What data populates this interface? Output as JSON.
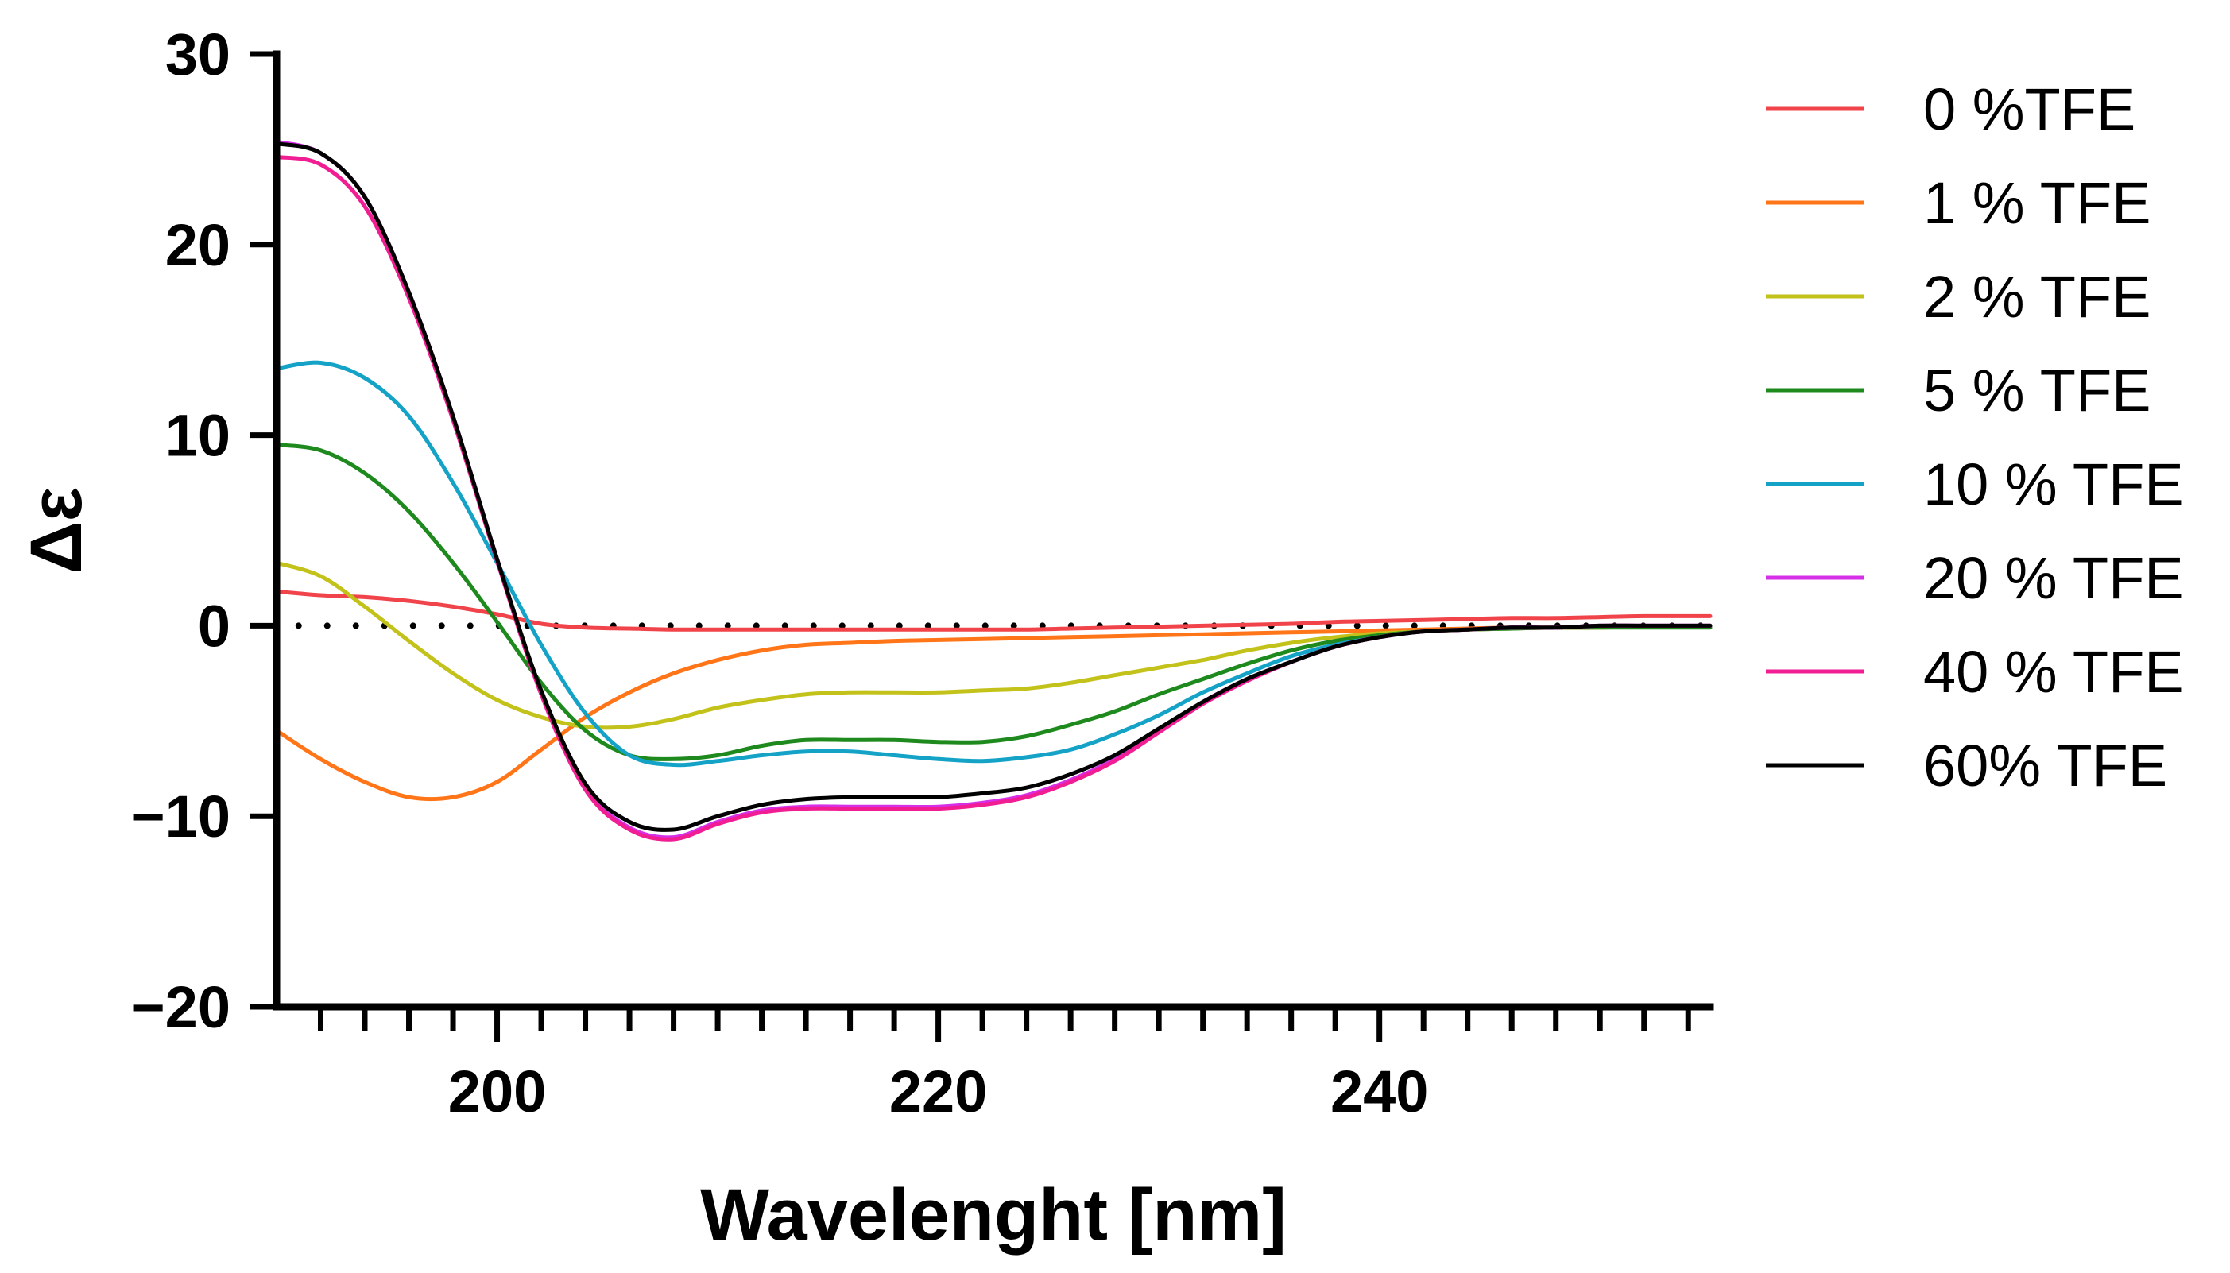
{
  "chart_data": {
    "type": "line",
    "title": "",
    "xlabel": "Wavelenght [nm]",
    "ylabel": "Δε",
    "xlim": [
      190,
      255
    ],
    "ylim": [
      -20,
      30
    ],
    "xticks": [
      200,
      220,
      240
    ],
    "xtick_labels": [
      "200",
      "220",
      "240"
    ],
    "yticks": [
      -20,
      -10,
      0,
      10,
      20,
      30
    ],
    "ytick_labels": [
      "−20",
      "−10",
      "0",
      "10",
      "20",
      "30"
    ],
    "minor_xtick_step": 2,
    "zero_reference": {
      "style": "dotted",
      "y": 0,
      "x_start": 191
    },
    "legend_position": "right",
    "x": [
      190,
      192,
      194,
      196,
      198,
      200,
      202,
      204,
      206,
      208,
      210,
      212,
      214,
      216,
      218,
      220,
      222,
      224,
      226,
      228,
      230,
      232,
      234,
      236,
      238,
      240,
      242,
      244,
      246,
      248,
      250,
      252,
      255
    ],
    "series": [
      {
        "name": "0 %TFE",
        "color": "#f0434a",
        "values": [
          1.8,
          1.6,
          1.5,
          1.3,
          1.0,
          0.6,
          0.1,
          -0.1,
          -0.15,
          -0.2,
          -0.2,
          -0.2,
          -0.2,
          -0.2,
          -0.2,
          -0.2,
          -0.2,
          -0.2,
          -0.15,
          -0.1,
          -0.05,
          0.0,
          0.05,
          0.1,
          0.2,
          0.25,
          0.3,
          0.35,
          0.4,
          0.4,
          0.45,
          0.5,
          0.5
        ]
      },
      {
        "name": "1 % TFE",
        "color": "#ff7518",
        "values": [
          -5.5,
          -7.0,
          -8.2,
          -9.0,
          -9.0,
          -8.2,
          -6.5,
          -4.8,
          -3.5,
          -2.5,
          -1.8,
          -1.3,
          -1.0,
          -0.9,
          -0.8,
          -0.75,
          -0.7,
          -0.65,
          -0.6,
          -0.55,
          -0.5,
          -0.45,
          -0.4,
          -0.35,
          -0.3,
          -0.25,
          -0.2,
          -0.15,
          -0.1,
          -0.1,
          -0.1,
          -0.05,
          0.0
        ]
      },
      {
        "name": "2 % TFE",
        "color": "#c2c21a",
        "values": [
          3.3,
          2.6,
          1.0,
          -0.8,
          -2.5,
          -3.9,
          -4.8,
          -5.3,
          -5.3,
          -4.9,
          -4.3,
          -3.9,
          -3.6,
          -3.5,
          -3.5,
          -3.5,
          -3.4,
          -3.3,
          -3.0,
          -2.6,
          -2.2,
          -1.8,
          -1.3,
          -0.9,
          -0.6,
          -0.4,
          -0.3,
          -0.2,
          -0.15,
          -0.1,
          -0.1,
          -0.05,
          0.0
        ]
      },
      {
        "name": "5 % TFE",
        "color": "#1e8a1e",
        "values": [
          9.5,
          9.2,
          8.0,
          6.0,
          3.3,
          0.2,
          -3.0,
          -5.5,
          -6.8,
          -7.0,
          -6.8,
          -6.3,
          -6.0,
          -6.0,
          -6.0,
          -6.1,
          -6.1,
          -5.8,
          -5.2,
          -4.5,
          -3.6,
          -2.8,
          -2.0,
          -1.3,
          -0.8,
          -0.5,
          -0.3,
          -0.2,
          -0.15,
          -0.1,
          -0.1,
          -0.1,
          -0.1
        ]
      },
      {
        "name": "10 % TFE",
        "color": "#14a3c7",
        "values": [
          13.5,
          13.8,
          13.0,
          11.0,
          7.5,
          3.3,
          -1.0,
          -4.6,
          -6.8,
          -7.3,
          -7.1,
          -6.8,
          -6.6,
          -6.6,
          -6.8,
          -7.0,
          -7.1,
          -6.9,
          -6.5,
          -5.7,
          -4.7,
          -3.5,
          -2.5,
          -1.6,
          -1.0,
          -0.6,
          -0.3,
          -0.2,
          -0.1,
          -0.1,
          0.0,
          0.0,
          0.0
        ]
      },
      {
        "name": "20 % TFE",
        "color": "#d62fe8",
        "values": [
          25.4,
          24.8,
          22.5,
          17.5,
          11.0,
          3.5,
          -3.5,
          -8.5,
          -10.6,
          -11.1,
          -10.3,
          -9.7,
          -9.5,
          -9.5,
          -9.5,
          -9.5,
          -9.3,
          -8.9,
          -8.1,
          -7.0,
          -5.5,
          -4.0,
          -2.8,
          -1.9,
          -1.1,
          -0.6,
          -0.3,
          -0.2,
          -0.1,
          -0.1,
          0.0,
          0.0,
          0.0
        ]
      },
      {
        "name": "40 % TFE",
        "color": "#f01d93",
        "values": [
          24.6,
          24.2,
          22.0,
          17.2,
          10.8,
          3.4,
          -3.6,
          -8.6,
          -10.7,
          -11.2,
          -10.4,
          -9.8,
          -9.6,
          -9.6,
          -9.6,
          -9.6,
          -9.4,
          -9.0,
          -8.2,
          -7.1,
          -5.6,
          -4.1,
          -2.9,
          -1.9,
          -1.1,
          -0.6,
          -0.3,
          -0.2,
          -0.1,
          -0.1,
          0.0,
          0.0,
          0.0
        ]
      },
      {
        "name": "60% TFE",
        "color": "#000000",
        "values": [
          25.3,
          24.8,
          22.5,
          17.5,
          11.0,
          3.5,
          -3.4,
          -8.3,
          -10.3,
          -10.7,
          -10.0,
          -9.4,
          -9.1,
          -9.0,
          -9.0,
          -9.0,
          -8.8,
          -8.5,
          -7.8,
          -6.8,
          -5.4,
          -4.0,
          -2.8,
          -1.9,
          -1.1,
          -0.6,
          -0.3,
          -0.2,
          -0.1,
          -0.1,
          0.0,
          0.0,
          0.0
        ]
      }
    ]
  }
}
